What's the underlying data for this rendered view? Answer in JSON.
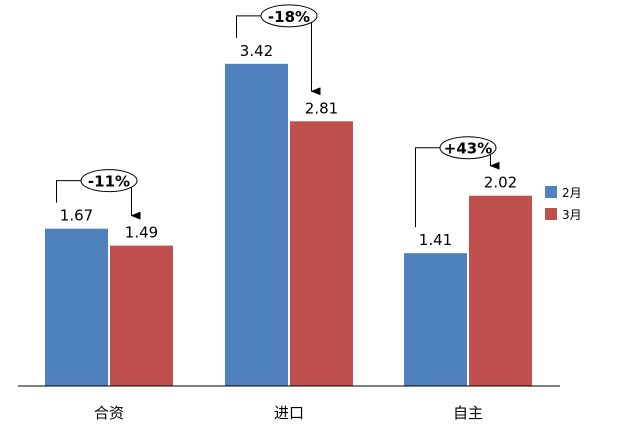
{
  "chart_data": {
    "type": "bar",
    "categories": [
      "合资",
      "进口",
      "自主"
    ],
    "series": [
      {
        "name": "2月",
        "values": [
          1.67,
          3.42,
          1.41
        ],
        "color": "#4F81BD"
      },
      {
        "name": "3月",
        "values": [
          1.49,
          2.81,
          2.02
        ],
        "color": "#C0504D"
      }
    ],
    "annotations": [
      "-11%",
      "-18%",
      "+43%"
    ],
    "ylim": [
      0,
      3.6
    ],
    "grid": false,
    "legend": "right"
  }
}
